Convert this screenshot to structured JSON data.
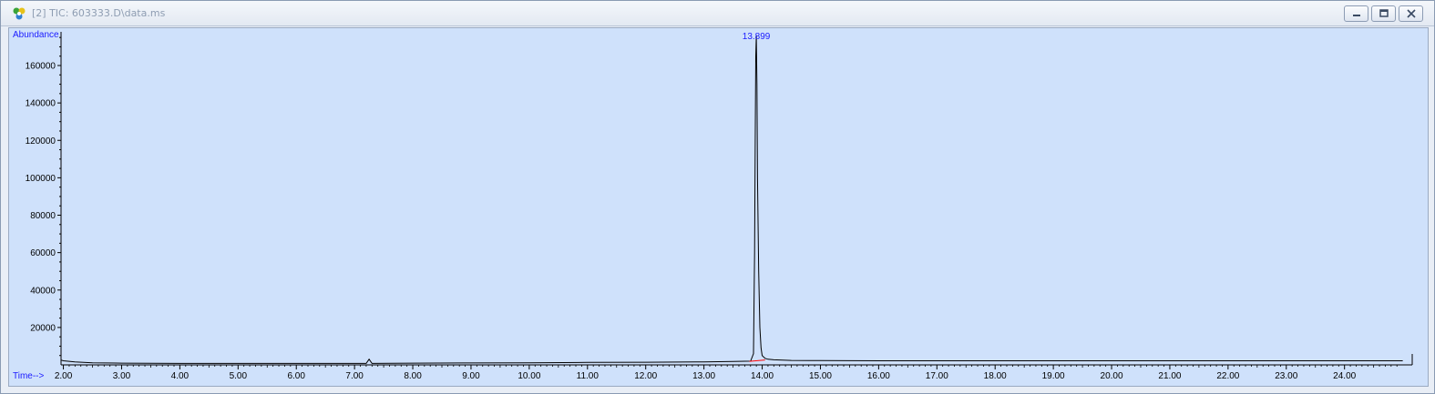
{
  "window": {
    "title": "[2] TIC: 603333.D\\data.ms",
    "icon": "chemstation-app-icon",
    "buttons": [
      "minimize-icon",
      "restore-icon",
      "close-icon"
    ]
  },
  "colors": {
    "plot_bg": "#cfe1fb",
    "axis_label": "#1a1aff",
    "trace": "#000000",
    "baseline": "#ff0000"
  },
  "chart_data": {
    "type": "line",
    "title": "",
    "ylabel": "Abundance",
    "xlabel": "Time-->",
    "xlim": [
      1.96,
      25.1
    ],
    "ylim": [
      0,
      178000
    ],
    "x_ticks": [
      "2.00",
      "3.00",
      "4.00",
      "5.00",
      "6.00",
      "7.00",
      "8.00",
      "9.00",
      "10.00",
      "11.00",
      "12.00",
      "13.00",
      "14.00",
      "15.00",
      "16.00",
      "17.00",
      "18.00",
      "19.00",
      "20.00",
      "21.00",
      "22.00",
      "23.00",
      "24.00"
    ],
    "y_ticks": [
      "20000",
      "40000",
      "60000",
      "80000",
      "100000",
      "120000",
      "140000",
      "160000"
    ],
    "peak_label": "13.899",
    "series": [
      {
        "x": [
          1.96,
          2.0,
          2.2,
          2.5,
          3.0,
          4.0,
          5.0,
          6.0,
          7.0,
          7.2,
          7.25,
          7.3,
          8.0,
          9.0,
          10.0,
          11.0,
          12.0,
          13.0,
          13.5,
          13.8,
          13.85,
          13.87,
          13.88,
          13.89,
          13.899,
          13.91,
          13.92,
          13.94,
          13.96,
          13.98,
          14.0,
          14.05,
          14.1,
          14.2,
          14.5,
          15.0,
          16.0,
          17.0,
          18.0,
          19.0,
          20.0,
          21.0,
          22.0,
          23.0,
          24.0,
          25.0
        ],
        "y": [
          2600,
          2200,
          1600,
          1100,
          900,
          800,
          800,
          800,
          800,
          800,
          3000,
          800,
          900,
          1000,
          1100,
          1300,
          1400,
          1600,
          1800,
          2000,
          6000,
          60000,
          120000,
          165000,
          176000,
          150000,
          100000,
          50000,
          20000,
          9000,
          5000,
          3500,
          3000,
          2700,
          2400,
          2300,
          2200,
          2200,
          2200,
          2200,
          2200,
          2200,
          2200,
          2200,
          2200,
          2200
        ]
      }
    ]
  }
}
